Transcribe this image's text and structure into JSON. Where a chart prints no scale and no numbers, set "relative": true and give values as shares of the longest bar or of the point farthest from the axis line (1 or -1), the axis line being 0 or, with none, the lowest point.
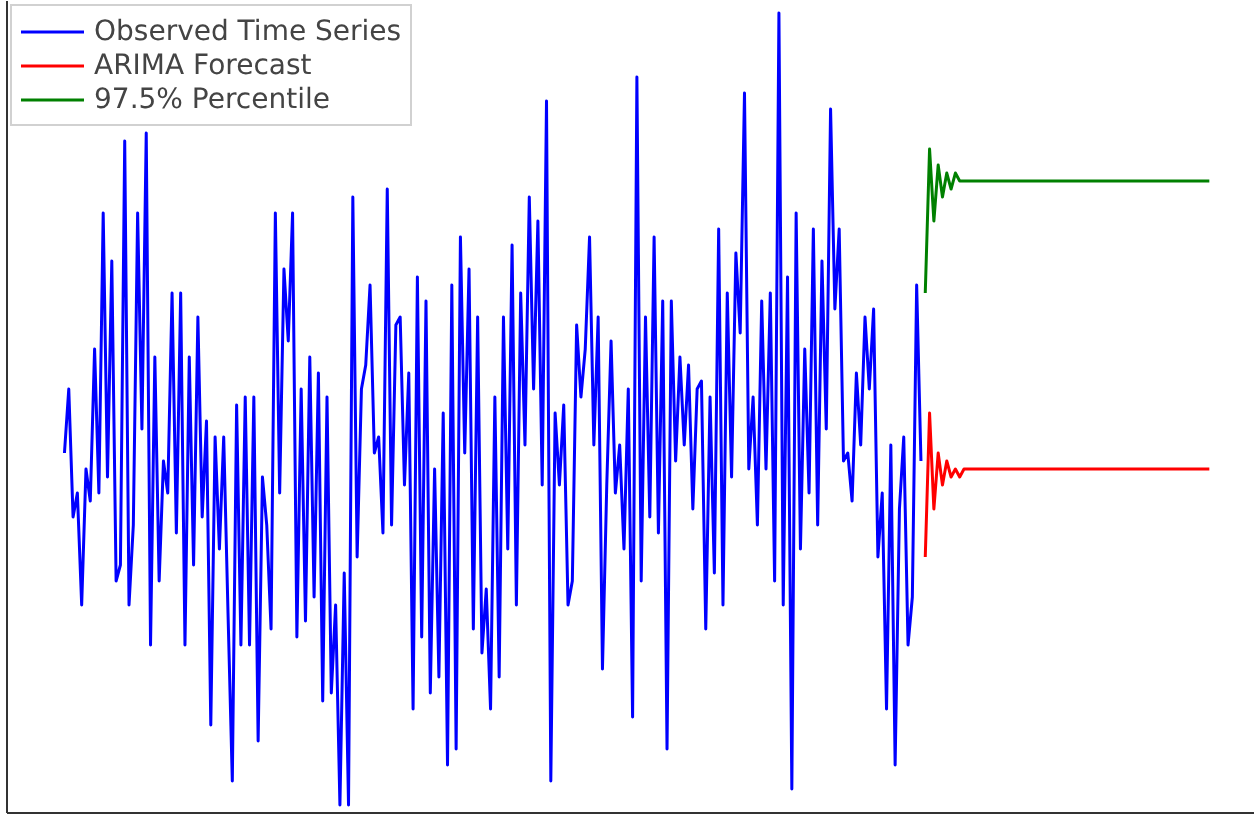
{
  "chart_data": {
    "type": "line",
    "relative": true,
    "legend": "top left",
    "tick_labels": false,
    "categories": [
      null,
      null,
      null,
      null,
      null,
      null,
      null,
      null,
      null,
      null,
      null,
      null,
      null,
      null,
      null,
      null,
      null,
      null,
      null,
      null,
      null,
      null,
      null,
      null,
      null,
      null,
      null,
      null,
      null,
      null,
      null,
      null,
      null,
      null,
      null,
      null,
      null,
      null,
      null,
      null,
      null,
      null,
      null,
      null,
      null,
      null,
      null,
      null,
      null,
      null,
      null,
      null,
      null,
      null,
      null,
      null,
      null,
      null,
      null,
      null,
      null,
      null,
      null,
      null,
      null,
      null,
      null,
      null,
      null,
      null,
      null,
      null,
      null,
      null,
      null,
      null,
      null,
      null,
      null,
      null,
      null,
      null,
      null,
      null,
      null,
      null,
      null,
      null,
      null,
      null,
      null,
      null,
      null,
      null,
      null,
      null,
      null,
      null,
      null,
      null,
      null,
      null,
      null,
      null,
      null,
      null,
      null,
      null,
      null,
      null,
      null,
      null,
      null,
      null,
      null,
      null,
      null,
      null,
      null,
      null,
      null,
      null,
      null,
      null,
      null,
      null,
      null,
      null,
      null,
      null,
      null,
      null,
      null,
      null,
      null,
      null,
      null,
      null,
      null,
      null,
      null,
      null,
      null,
      null,
      null,
      null,
      null,
      null,
      null,
      null,
      null,
      null,
      null,
      null,
      null,
      null,
      null,
      null,
      null,
      null,
      null,
      null,
      null,
      null,
      null,
      null,
      null,
      null,
      null,
      null,
      null,
      null,
      null,
      null,
      null,
      null,
      null,
      null,
      null,
      null,
      null,
      null,
      null,
      null,
      null,
      null,
      null,
      null,
      null,
      null,
      null,
      null,
      null,
      null,
      null,
      null,
      null,
      null,
      null,
      null,
      null,
      null,
      null,
      null,
      null,
      null,
      null,
      null,
      null,
      null,
      null,
      null,
      null,
      null,
      null,
      null,
      null,
      null,
      null,
      null,
      null,
      null,
      null,
      null,
      null,
      null,
      null,
      null,
      null,
      null,
      null,
      null,
      null,
      null,
      null,
      null,
      null,
      null,
      null,
      null,
      null,
      null,
      null,
      null,
      null,
      null,
      null,
      null,
      null,
      null,
      null,
      null,
      null,
      null,
      null,
      null,
      null,
      null,
      null,
      null,
      null,
      null,
      null,
      null,
      null,
      null,
      null
    ],
    "series": [
      {
        "name": "Observed Time Series",
        "color": "#0000ff",
        "values": [
          0.45,
          0.53,
          0.37,
          0.4,
          0.26,
          0.43,
          0.39,
          0.58,
          0.4,
          0.75,
          0.42,
          0.69,
          0.29,
          0.31,
          0.84,
          0.26,
          0.36,
          0.75,
          0.48,
          0.85,
          0.21,
          0.57,
          0.29,
          0.44,
          0.4,
          0.65,
          0.35,
          0.65,
          0.21,
          0.57,
          0.31,
          0.62,
          0.37,
          0.49,
          0.11,
          0.47,
          0.33,
          0.47,
          0.25,
          0.04,
          0.51,
          0.21,
          0.52,
          0.21,
          0.52,
          0.09,
          0.42,
          0.36,
          0.23,
          0.75,
          0.4,
          0.68,
          0.59,
          0.75,
          0.22,
          0.53,
          0.24,
          0.57,
          0.27,
          0.55,
          0.14,
          0.52,
          0.15,
          0.26,
          0.01,
          0.3,
          0.01,
          0.77,
          0.32,
          0.53,
          0.56,
          0.66,
          0.45,
          0.47,
          0.35,
          0.78,
          0.36,
          0.61,
          0.62,
          0.41,
          0.55,
          0.13,
          0.67,
          0.22,
          0.64,
          0.15,
          0.43,
          0.17,
          0.5,
          0.06,
          0.66,
          0.08,
          0.72,
          0.45,
          0.68,
          0.23,
          0.62,
          0.2,
          0.28,
          0.13,
          0.52,
          0.17,
          0.62,
          0.33,
          0.71,
          0.26,
          0.65,
          0.46,
          0.77,
          0.53,
          0.74,
          0.41,
          0.89,
          0.04,
          0.5,
          0.41,
          0.51,
          0.26,
          0.29,
          0.61,
          0.52,
          0.58,
          0.72,
          0.46,
          0.62,
          0.18,
          0.41,
          0.59,
          0.4,
          0.46,
          0.33,
          0.53,
          0.12,
          0.92,
          0.29,
          0.62,
          0.37,
          0.72,
          0.35,
          0.64,
          0.08,
          0.64,
          0.44,
          0.57,
          0.46,
          0.56,
          0.38,
          0.53,
          0.54,
          0.23,
          0.52,
          0.3,
          0.73,
          0.26,
          0.65,
          0.42,
          0.7,
          0.6,
          0.9,
          0.43,
          0.52,
          0.36,
          0.64,
          0.43,
          0.65,
          0.29,
          1.0,
          0.26,
          0.67,
          0.03,
          0.75,
          0.33,
          0.58,
          0.4,
          0.73,
          0.36,
          0.69,
          0.48,
          0.88,
          0.63,
          0.73,
          0.44,
          0.45,
          0.39,
          0.55,
          0.46,
          0.62,
          0.53,
          0.63,
          0.32,
          0.4,
          0.13,
          0.46,
          0.06,
          0.38,
          0.47,
          0.21,
          0.27,
          0.66,
          0.44,
          null,
          null,
          null,
          null,
          null,
          null,
          null,
          null,
          null,
          null,
          null,
          null,
          null,
          null,
          null,
          null,
          null,
          null,
          null,
          null,
          null,
          null,
          null,
          null,
          null,
          null,
          null,
          null,
          null,
          null,
          null,
          null,
          null,
          null,
          null,
          null,
          null,
          null,
          null,
          null,
          null,
          null,
          null,
          null,
          null,
          null,
          null,
          null,
          null,
          null,
          null,
          null,
          null,
          null,
          null,
          null,
          null,
          null,
          null,
          null,
          null,
          null,
          null,
          null,
          null,
          null,
          null
        ]
      },
      {
        "name": "ARIMA Forecast",
        "color": "#ff0000",
        "values": [
          null,
          null,
          null,
          null,
          null,
          null,
          null,
          null,
          null,
          null,
          null,
          null,
          null,
          null,
          null,
          null,
          null,
          null,
          null,
          null,
          null,
          null,
          null,
          null,
          null,
          null,
          null,
          null,
          null,
          null,
          null,
          null,
          null,
          null,
          null,
          null,
          null,
          null,
          null,
          null,
          null,
          null,
          null,
          null,
          null,
          null,
          null,
          null,
          null,
          null,
          null,
          null,
          null,
          null,
          null,
          null,
          null,
          null,
          null,
          null,
          null,
          null,
          null,
          null,
          null,
          null,
          null,
          null,
          null,
          null,
          null,
          null,
          null,
          null,
          null,
          null,
          null,
          null,
          null,
          null,
          null,
          null,
          null,
          null,
          null,
          null,
          null,
          null,
          null,
          null,
          null,
          null,
          null,
          null,
          null,
          null,
          null,
          null,
          null,
          null,
          null,
          null,
          null,
          null,
          null,
          null,
          null,
          null,
          null,
          null,
          null,
          null,
          null,
          null,
          null,
          null,
          null,
          null,
          null,
          null,
          null,
          null,
          null,
          null,
          null,
          null,
          null,
          null,
          null,
          null,
          null,
          null,
          null,
          null,
          null,
          null,
          null,
          null,
          null,
          null,
          null,
          null,
          null,
          null,
          null,
          null,
          null,
          null,
          null,
          null,
          null,
          null,
          null,
          null,
          null,
          null,
          null,
          null,
          null,
          null,
          null,
          null,
          null,
          null,
          null,
          null,
          null,
          null,
          null,
          null,
          null,
          null,
          null,
          null,
          null,
          null,
          null,
          null,
          null,
          null,
          null,
          null,
          null,
          null,
          null,
          null,
          null,
          null,
          null,
          null,
          null,
          null,
          null,
          null,
          null,
          null,
          null,
          null,
          null,
          null,
          0.32,
          0.5,
          0.38,
          0.45,
          0.41,
          0.44,
          0.42,
          0.43,
          0.42,
          0.43,
          0.43,
          0.43,
          0.43,
          0.43,
          0.43,
          0.43,
          0.43,
          0.43,
          0.43,
          0.43,
          0.43,
          0.43,
          0.43,
          0.43,
          0.43,
          0.43,
          0.43,
          0.43,
          0.43,
          0.43,
          0.43,
          0.43,
          0.43,
          0.43,
          0.43,
          0.43,
          0.43,
          0.43,
          0.43,
          0.43,
          0.43,
          0.43,
          0.43,
          0.43,
          0.43,
          0.43,
          0.43,
          0.43,
          0.43,
          0.43,
          0.43,
          0.43,
          0.43,
          0.43,
          0.43,
          0.43,
          0.43,
          0.43,
          0.43,
          0.43,
          0.43,
          0.43,
          0.43,
          0.43,
          0.43,
          0.43,
          0.43
        ]
      },
      {
        "name": "97.5% Percentile",
        "color": "#008000",
        "values": [
          null,
          null,
          null,
          null,
          null,
          null,
          null,
          null,
          null,
          null,
          null,
          null,
          null,
          null,
          null,
          null,
          null,
          null,
          null,
          null,
          null,
          null,
          null,
          null,
          null,
          null,
          null,
          null,
          null,
          null,
          null,
          null,
          null,
          null,
          null,
          null,
          null,
          null,
          null,
          null,
          null,
          null,
          null,
          null,
          null,
          null,
          null,
          null,
          null,
          null,
          null,
          null,
          null,
          null,
          null,
          null,
          null,
          null,
          null,
          null,
          null,
          null,
          null,
          null,
          null,
          null,
          null,
          null,
          null,
          null,
          null,
          null,
          null,
          null,
          null,
          null,
          null,
          null,
          null,
          null,
          null,
          null,
          null,
          null,
          null,
          null,
          null,
          null,
          null,
          null,
          null,
          null,
          null,
          null,
          null,
          null,
          null,
          null,
          null,
          null,
          null,
          null,
          null,
          null,
          null,
          null,
          null,
          null,
          null,
          null,
          null,
          null,
          null,
          null,
          null,
          null,
          null,
          null,
          null,
          null,
          null,
          null,
          null,
          null,
          null,
          null,
          null,
          null,
          null,
          null,
          null,
          null,
          null,
          null,
          null,
          null,
          null,
          null,
          null,
          null,
          null,
          null,
          null,
          null,
          null,
          null,
          null,
          null,
          null,
          null,
          null,
          null,
          null,
          null,
          null,
          null,
          null,
          null,
          null,
          null,
          null,
          null,
          null,
          null,
          null,
          null,
          null,
          null,
          null,
          null,
          null,
          null,
          null,
          null,
          null,
          null,
          null,
          null,
          null,
          null,
          null,
          null,
          null,
          null,
          null,
          null,
          null,
          null,
          null,
          null,
          null,
          null,
          null,
          null,
          null,
          null,
          null,
          null,
          null,
          null,
          0.65,
          0.83,
          0.74,
          0.81,
          0.77,
          0.8,
          0.78,
          0.8,
          0.79,
          0.79,
          0.79,
          0.79,
          0.79,
          0.79,
          0.79,
          0.79,
          0.79,
          0.79,
          0.79,
          0.79,
          0.79,
          0.79,
          0.79,
          0.79,
          0.79,
          0.79,
          0.79,
          0.79,
          0.79,
          0.79,
          0.79,
          0.79,
          0.79,
          0.79,
          0.79,
          0.79,
          0.79,
          0.79,
          0.79,
          0.79,
          0.79,
          0.79,
          0.79,
          0.79,
          0.79,
          0.79,
          0.79,
          0.79,
          0.79,
          0.79,
          0.79,
          0.79,
          0.79,
          0.79,
          0.79,
          0.79,
          0.79,
          0.79,
          0.79,
          0.79,
          0.79,
          0.79,
          0.79,
          0.79,
          0.79,
          0.79,
          0.79
        ]
      }
    ]
  }
}
